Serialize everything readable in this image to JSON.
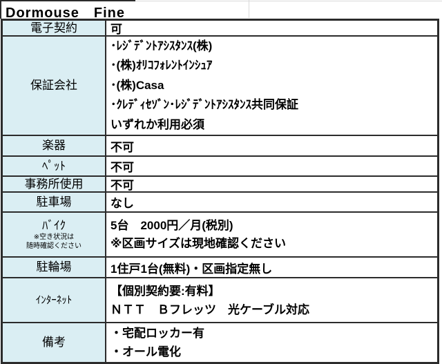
{
  "title": "Dormouse　Fine",
  "colors": {
    "header_bg": "#daeef3",
    "border": "#2b2b2b",
    "gridline": "#d9d9d9",
    "text": "#000000"
  },
  "table": {
    "rows": [
      {
        "key": "electronic-contract",
        "label": "電子契約",
        "lines": [
          "可"
        ]
      },
      {
        "key": "guarantor-company",
        "label": "保証会社",
        "lines": [
          "･ﾚｼﾞﾃﾞﾝﾄｱｼｽﾀﾝｽ(株)",
          "･(株)ｵﾘｺﾌｫﾚﾝﾄｲﾝｼｭｱ",
          "･(株)Casa",
          "･ｸﾚﾃﾞｨｾｿﾞﾝ･ﾚｼﾞﾃﾞﾝﾄｱｼｽﾀﾝｽ共同保証",
          "いずれか利用必須"
        ]
      },
      {
        "key": "instruments",
        "label": "楽器",
        "lines": [
          "不可"
        ]
      },
      {
        "key": "pets",
        "label": "ﾍﾟｯﾄ",
        "lines": [
          "不可"
        ]
      },
      {
        "key": "office-use",
        "label": "事務所使用",
        "lines": [
          "不可"
        ]
      },
      {
        "key": "parking",
        "label": "駐車場",
        "lines": [
          "なし"
        ]
      },
      {
        "key": "bike",
        "label": "ﾊﾞｲｸ",
        "note_lines": [
          "※空き状況は",
          "随時確認ください"
        ],
        "lines": [
          "5台　2000円／月(税別)",
          "※区画サイズは現地確認ください"
        ]
      },
      {
        "key": "bicycle-parking",
        "label": "駐輪場",
        "lines": [
          "1住戸1台(無料)・区画指定無し"
        ]
      },
      {
        "key": "internet",
        "label": "ｲﾝﾀｰﾈｯﾄ",
        "lines": [
          "【個別契約要:有料】",
          "ＮＴＴ　Ｂフレッツ　光ケーブル対応"
        ]
      },
      {
        "key": "remarks",
        "label": "備考",
        "lines": [
          "・宅配ロッカー有",
          "・オール電化"
        ]
      }
    ]
  }
}
